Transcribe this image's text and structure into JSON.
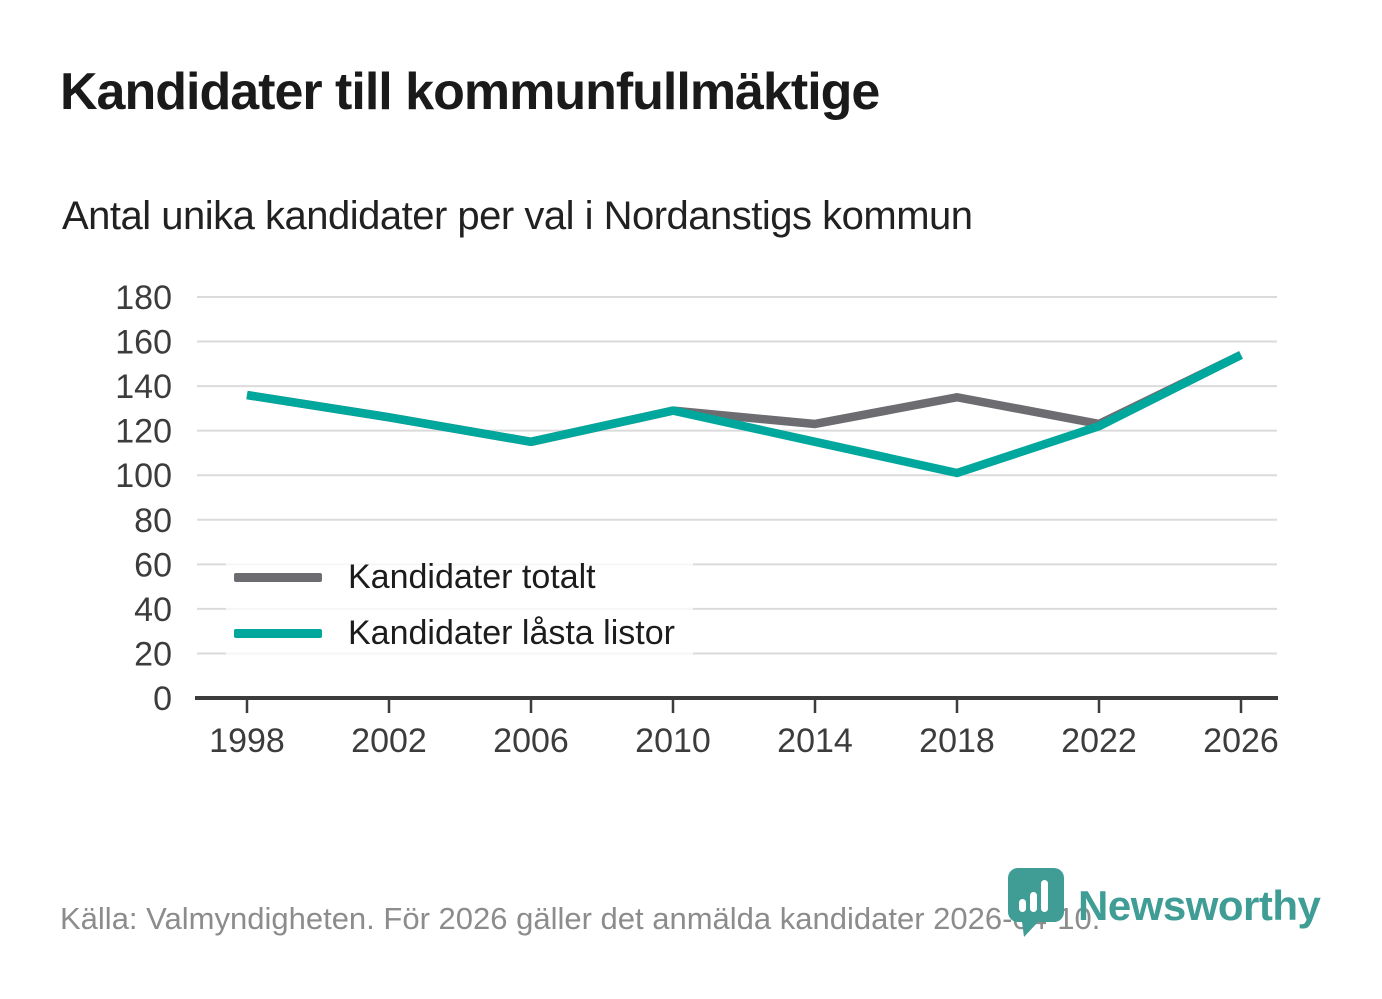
{
  "page": {
    "title": "Kandidater till kommunfullmäktige",
    "subtitle": "Antal unika kandidater per val i Nordanstigs kommun",
    "footer": "Källa: Valmyndigheten. För 2026 gäller det anmälda kandidater 2026-04-10.",
    "brand": {
      "name": "Newsworthy",
      "logo_icon": "newsworthy-pin-barchart-icon",
      "color": "#3f9d96"
    }
  },
  "chart_data": {
    "type": "line",
    "title": "Kandidater till kommunfullmäktige",
    "subtitle": "Antal unika kandidater per val i Nordanstigs kommun",
    "categories": [
      "1998",
      "2002",
      "2006",
      "2010",
      "2014",
      "2018",
      "2022",
      "2026"
    ],
    "series": [
      {
        "name": "Kandidater totalt",
        "color": "#6d6d71",
        "values": [
          136,
          126,
          115,
          129,
          123,
          135,
          123,
          154
        ]
      },
      {
        "name": "Kandidater låsta listor",
        "color": "#00a79c",
        "values": [
          136,
          126,
          115,
          129,
          115,
          101,
          122,
          154
        ]
      }
    ],
    "xlabel": "",
    "ylabel": "",
    "ylim": [
      0,
      180
    ],
    "ytick_step": 20,
    "grid": "horizontal",
    "legend_position": "inside-lower-left"
  }
}
